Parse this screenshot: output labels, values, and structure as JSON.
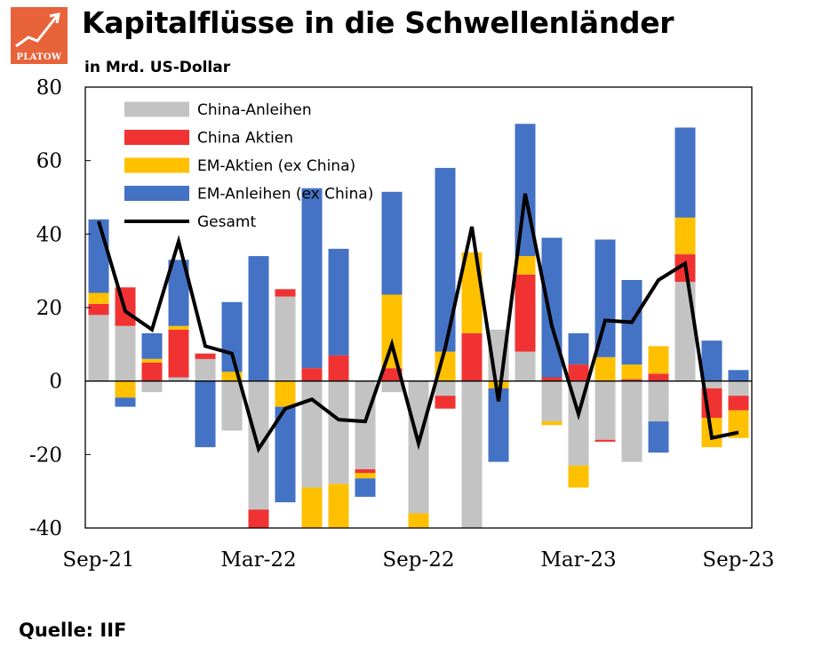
{
  "header": {
    "logo_text": "PLATOW",
    "title": "Kapitalflüsse in die Schwellenländer",
    "subtitle": "in Mrd. US-Dollar"
  },
  "footer": {
    "source": "Quelle: IIF"
  },
  "colors": {
    "china_bonds": "#c3c3c3",
    "china_equity": "#f03232",
    "em_equity": "#ffc000",
    "em_bonds": "#4472c4",
    "total": "#000000",
    "logo_bg": "#e8623a"
  },
  "chart_data": {
    "type": "bar",
    "stacked": true,
    "title": "Kapitalflüsse in die Schwellenländer",
    "ylabel": "in Mrd. US-Dollar",
    "ylim": [
      -40,
      80
    ],
    "yticks": [
      80,
      60,
      40,
      20,
      0,
      -20,
      -40
    ],
    "x_tick_labels": [
      "Sep-21",
      "Mar-22",
      "Sep-22",
      "Mar-23",
      "Sep-23"
    ],
    "x_tick_positions": [
      0,
      6,
      12,
      18,
      24
    ],
    "legend_position": "top-left",
    "categories": [
      "Sep-21",
      "Oct-21",
      "Nov-21",
      "Dec-21",
      "Jan-22",
      "Feb-22",
      "Mar-22",
      "Apr-22",
      "May-22",
      "Jun-22",
      "Jul-22",
      "Aug-22",
      "Sep-22",
      "Oct-22",
      "Nov-22",
      "Dec-22",
      "Jan-23",
      "Feb-23",
      "Mar-23",
      "Apr-23",
      "May-23",
      "Jun-23",
      "Jul-23",
      "Aug-23",
      "Sep-23"
    ],
    "series": [
      {
        "name": "China-Anleihen",
        "key": "china_bonds",
        "values": [
          18,
          15,
          -3,
          1,
          6,
          -13.5,
          -35,
          23,
          -29,
          -28,
          -24,
          -3,
          -36,
          -4,
          -41,
          14,
          8,
          -11,
          -23,
          -16,
          -22,
          -11,
          27,
          -2,
          -4
        ]
      },
      {
        "name": "China Aktien",
        "key": "china_equity",
        "values": [
          3,
          10.5,
          5,
          13,
          1.5,
          0,
          -8,
          2,
          3.5,
          7,
          -1,
          3.5,
          0,
          -3.5,
          13,
          0,
          21,
          1,
          4.5,
          -0.5,
          0.5,
          2,
          7.5,
          -8,
          -4
        ]
      },
      {
        "name": "EM-Aktien (ex China)",
        "key": "em_equity",
        "values": [
          3,
          -4.5,
          1,
          1,
          0,
          2.5,
          -5,
          -7,
          -12,
          -16,
          -1.5,
          20,
          -13,
          8,
          22,
          -2,
          5,
          -1,
          -6,
          6.5,
          4,
          7.5,
          10,
          -8,
          -7.5
        ]
      },
      {
        "name": "EM-Anleihen (ex China)",
        "key": "em_bonds",
        "values": [
          20,
          -2.5,
          7,
          18,
          -18,
          19,
          34,
          -26,
          49,
          29,
          -5,
          28,
          0,
          50,
          -6,
          -20,
          36,
          38,
          8.5,
          32,
          23,
          -8.5,
          24.5,
          11,
          3
        ]
      },
      {
        "name": "Gesamt",
        "key": "total",
        "type": "line",
        "values": [
          43.5,
          19,
          14,
          38,
          9.5,
          7.5,
          -18.5,
          -7.5,
          -5,
          -10.5,
          -11,
          10,
          -17,
          9,
          42,
          -5.5,
          51,
          15,
          -9,
          16.5,
          16,
          27.5,
          32,
          -15.5,
          -14
        ]
      }
    ]
  }
}
